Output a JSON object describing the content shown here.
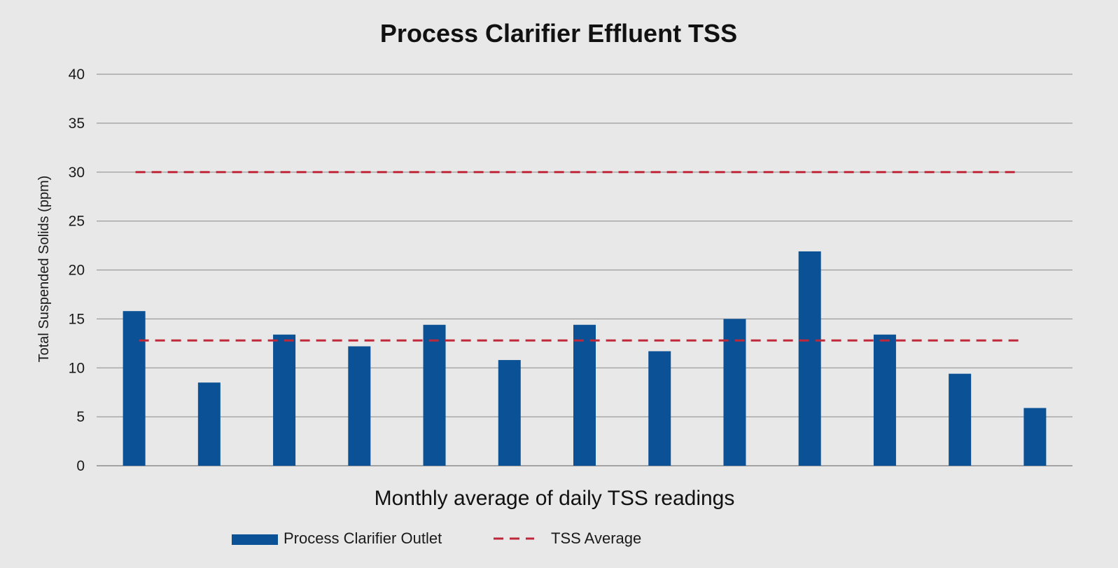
{
  "chart_data": {
    "type": "bar",
    "title": "Process Clarifier Effluent TSS",
    "xlabel": "Monthly average of daily TSS readings",
    "ylabel": "Total Suspended Solids (ppm)",
    "ylim": [
      0,
      40
    ],
    "yticks": [
      0,
      5,
      10,
      15,
      20,
      25,
      30,
      35,
      40
    ],
    "grid": true,
    "legend_position": "bottom-left",
    "bar_color": "#0b5196",
    "line_color": "#c0283a",
    "series": [
      {
        "name": "Process Clarifier Outlet",
        "type": "bar",
        "values": [
          15.8,
          8.5,
          13.4,
          12.2,
          14.4,
          10.8,
          14.4,
          11.7,
          15.0,
          21.9,
          13.4,
          9.4,
          5.9
        ]
      },
      {
        "name": "TSS Average",
        "type": "line",
        "style": "dashed",
        "values": [
          12.8,
          12.8,
          12.8,
          12.8,
          12.8,
          12.8,
          12.8,
          12.8,
          12.8,
          12.8,
          12.8,
          12.8,
          12.8
        ]
      }
    ],
    "reference_line": {
      "value": 30,
      "style": "dashed"
    }
  }
}
